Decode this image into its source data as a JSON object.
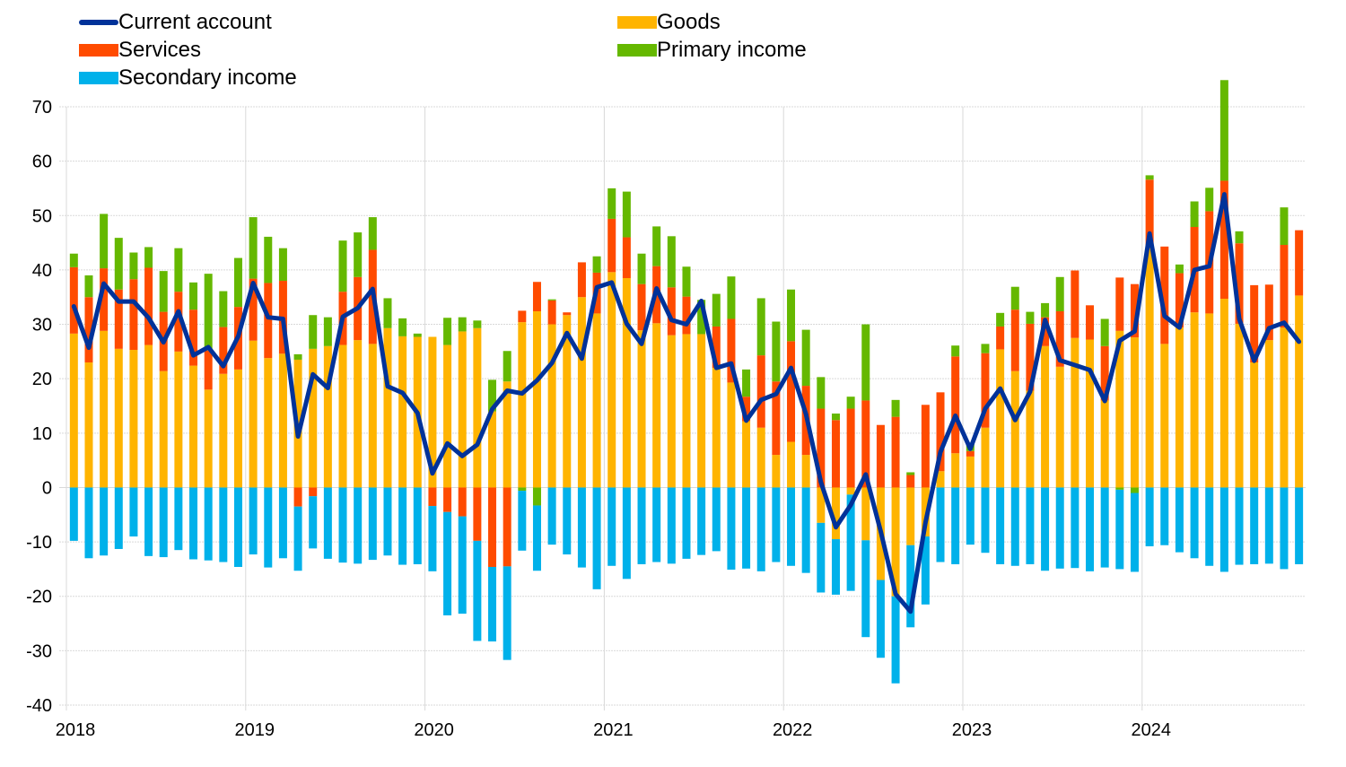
{
  "chart_data": {
    "type": "bar",
    "subtype": "stacked-bar-with-line",
    "title": "",
    "xlabel": "",
    "ylabel": "",
    "ylim": [
      -40,
      70
    ],
    "yticks": [
      70,
      60,
      50,
      40,
      30,
      20,
      10,
      0,
      -10,
      -20,
      -30,
      -40
    ],
    "xtick_labels": [
      "2018",
      "2019",
      "2020",
      "2021",
      "2022",
      "2023",
      "2024"
    ],
    "grid": true,
    "legend_position": "top-left",
    "start": "2018-01",
    "frequency": "monthly",
    "legend": [
      {
        "name": "Current account",
        "kind": "line",
        "color": "#003299"
      },
      {
        "name": "Goods",
        "kind": "bar",
        "color": "#FFB400"
      },
      {
        "name": "Services",
        "kind": "bar",
        "color": "#FF4B00"
      },
      {
        "name": "Primary income",
        "kind": "bar",
        "color": "#65B800"
      },
      {
        "name": "Secondary income",
        "kind": "bar",
        "color": "#00B1EA"
      }
    ],
    "series": [
      {
        "name": "Goods",
        "values": [
          28.3,
          23.0,
          28.8,
          25.5,
          25.3,
          26.2,
          21.4,
          25.0,
          22.4,
          18.0,
          20.9,
          21.7,
          27.0,
          23.8,
          24.6,
          23.5,
          25.5,
          26.0,
          26.2,
          27.1,
          26.4,
          29.3,
          27.8,
          27.7,
          27.7,
          26.2,
          28.7,
          29.3,
          14.0,
          19.5,
          30.4,
          32.4,
          30.0,
          31.7,
          35.0,
          32.0,
          39.6,
          38.5,
          28.9,
          30.2,
          28.0,
          28.2,
          28.2,
          22.0,
          19.3,
          12.2,
          11.0,
          6.0,
          8.4,
          6.0,
          -6.5,
          -9.5,
          -1.3,
          -9.7,
          -17.0,
          -20.0,
          -10.6,
          -9.0,
          3.0,
          6.3,
          5.7,
          11.0,
          25.4,
          21.4,
          17.8,
          26.0,
          22.2,
          27.5,
          27.2,
          16.0,
          28.8,
          27.6,
          44.1,
          26.4,
          29.4,
          32.2,
          32.0,
          34.7,
          30.1,
          23.0,
          27.1,
          29.4,
          35.3
        ]
      },
      {
        "name": "Services",
        "values": [
          12.2,
          12.0,
          11.5,
          10.9,
          13.0,
          14.2,
          10.9,
          11.0,
          10.3,
          7.2,
          8.6,
          11.5,
          11.4,
          13.8,
          13.4,
          -3.5,
          -1.6,
          0.0,
          9.8,
          11.6,
          17.3,
          0.0,
          0.0,
          0.0,
          -3.4,
          -4.5,
          -5.3,
          -9.8,
          -14.6,
          -14.5,
          2.1,
          5.4,
          4.4,
          0.5,
          6.4,
          7.5,
          9.8,
          7.5,
          8.5,
          10.5,
          8.8,
          6.9,
          0.0,
          7.6,
          11.7,
          4.5,
          13.3,
          13.5,
          18.5,
          12.7,
          14.5,
          12.4,
          14.5,
          16.0,
          11.5,
          13.0,
          2.3,
          15.2,
          14.5,
          17.8,
          1.0,
          13.7,
          4.2,
          11.3,
          12.3,
          5.3,
          10.2,
          12.4,
          6.3,
          10.0,
          9.8,
          9.8,
          12.5,
          17.9,
          10.0,
          15.7,
          18.8,
          21.7,
          14.8,
          14.2,
          10.2,
          15.2,
          12.0
        ]
      },
      {
        "name": "Primary income",
        "values": [
          2.5,
          4.0,
          10.0,
          9.5,
          4.9,
          3.8,
          7.5,
          8.0,
          5.0,
          14.1,
          6.6,
          9.0,
          11.3,
          8.5,
          6.0,
          1.0,
          6.2,
          5.3,
          9.4,
          8.2,
          6.0,
          5.5,
          3.3,
          0.6,
          0.0,
          5.0,
          2.6,
          1.4,
          5.8,
          5.6,
          -0.6,
          -3.3,
          0.2,
          0.0,
          0.0,
          3.0,
          5.6,
          8.4,
          5.6,
          7.3,
          9.4,
          5.5,
          6.3,
          6.0,
          7.8,
          5.0,
          10.5,
          11.0,
          9.5,
          10.3,
          5.8,
          1.2,
          2.2,
          14.0,
          0.0,
          3.1,
          0.5,
          0.0,
          0.0,
          2.0,
          1.4,
          1.7,
          2.5,
          4.2,
          2.2,
          2.6,
          6.3,
          0.0,
          0.0,
          5.0,
          -0.4,
          -1.0,
          0.8,
          0.0,
          1.6,
          4.7,
          4.3,
          18.5,
          2.2,
          0.0,
          0.0,
          6.9,
          0.0
        ]
      },
      {
        "name": "Secondary income",
        "values": [
          -9.8,
          -13.0,
          -12.5,
          -11.3,
          -9.0,
          -12.6,
          -12.8,
          -11.5,
          -13.2,
          -13.4,
          -13.7,
          -14.6,
          -12.3,
          -14.7,
          -13.0,
          -11.8,
          -9.6,
          -13.1,
          -13.8,
          -14.0,
          -13.3,
          -12.5,
          -14.2,
          -14.1,
          -12.0,
          -19.0,
          -17.9,
          -18.4,
          -13.7,
          -17.2,
          -11.0,
          -12.0,
          -10.5,
          -12.3,
          -14.7,
          -18.7,
          -14.4,
          -16.8,
          -14.1,
          -13.7,
          -14.0,
          -13.1,
          -12.4,
          -11.7,
          -15.1,
          -14.9,
          -15.4,
          -13.7,
          -14.4,
          -15.7,
          -12.8,
          -10.2,
          -17.7,
          -17.8,
          -14.3,
          -16.0,
          -15.1,
          -12.5,
          -13.7,
          -14.1,
          -10.5,
          -12.0,
          -14.1,
          -14.4,
          -14.1,
          -15.3,
          -14.9,
          -14.8,
          -15.4,
          -14.7,
          -14.6,
          -14.5,
          -10.8,
          -10.6,
          -11.9,
          -13.0,
          -14.4,
          -15.5,
          -14.2,
          -14.1,
          -14.0,
          -15.0,
          -14.1
        ]
      },
      {
        "name": "Current account",
        "kind": "line",
        "values": [
          33.3,
          25.7,
          37.5,
          34.2,
          34.2,
          31.2,
          26.7,
          32.4,
          24.3,
          25.8,
          22.3,
          27.8,
          37.6,
          31.3,
          31.0,
          9.4,
          20.8,
          18.3,
          31.4,
          33.0,
          36.5,
          18.6,
          17.4,
          13.7,
          2.6,
          8.1,
          5.8,
          7.9,
          14.4,
          17.8,
          17.3,
          19.7,
          22.9,
          28.4,
          23.7,
          36.8,
          37.7,
          30.1,
          26.4,
          36.6,
          30.8,
          30.0,
          34.3,
          22.0,
          22.8,
          12.3,
          16.1,
          17.2,
          22.0,
          13.5,
          1.0,
          -7.3,
          -3.2,
          2.4,
          -8.0,
          -19.6,
          -22.8,
          -6.4,
          6.5,
          13.2,
          7.1,
          14.5,
          18.2,
          12.4,
          17.6,
          30.8,
          23.4,
          22.5,
          21.6,
          15.9,
          27.0,
          28.7,
          46.7,
          31.5,
          29.4,
          40.0,
          40.7,
          53.9,
          31.0,
          23.3,
          29.3,
          30.3,
          26.8
        ]
      }
    ]
  }
}
